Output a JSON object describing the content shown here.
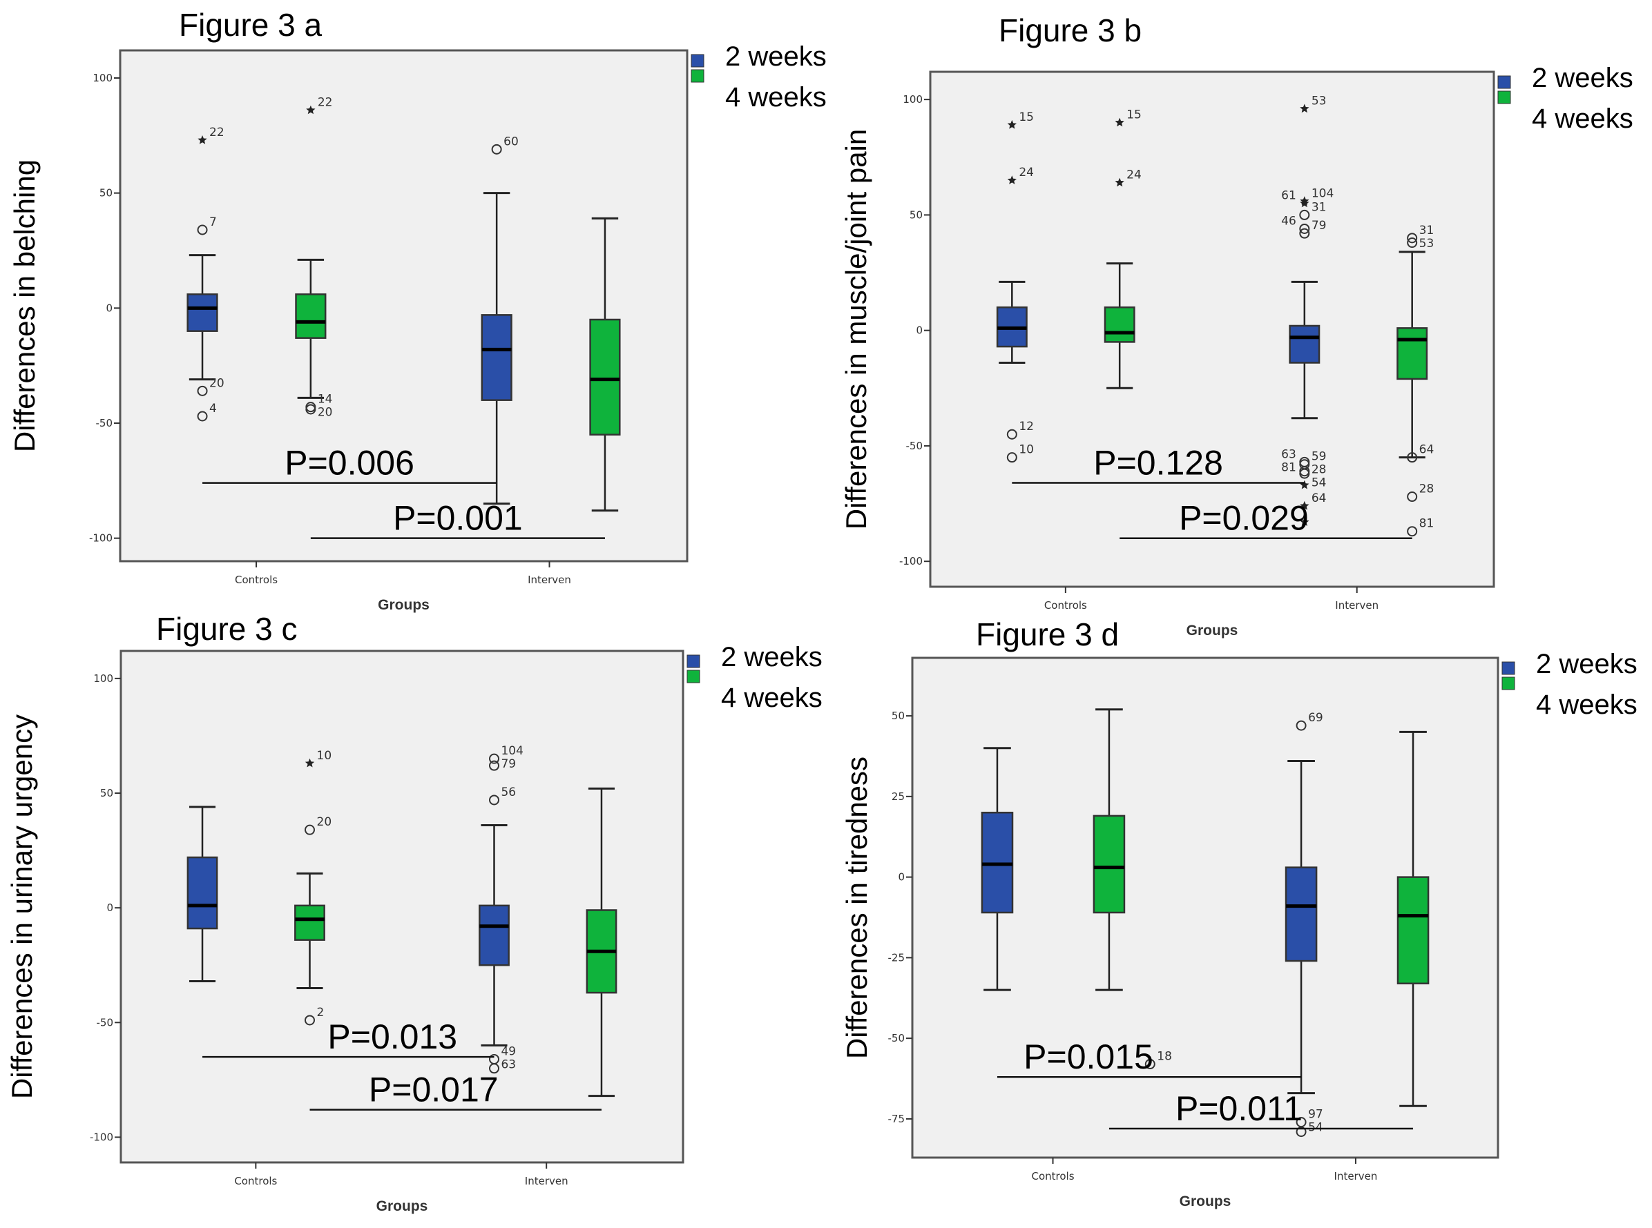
{
  "legend": {
    "entries": [
      {
        "label": "2 weeks",
        "color": "#2a4fa8"
      },
      {
        "label": "4 weeks",
        "color": "#0fb33c"
      }
    ]
  },
  "colors": {
    "plot_background": "#f0f0f0",
    "frame": "#555555",
    "median": "#000000"
  },
  "chart_data": [
    {
      "type": "box",
      "title": "Figure 3 a",
      "xlabel": "Groups",
      "ylabel": "Differences  in belching",
      "categories": [
        "Controls",
        "Interven"
      ],
      "ylim": [
        -110,
        112
      ],
      "yticks": [
        -100,
        -50,
        0,
        50,
        100
      ],
      "grid": false,
      "legend_placement": "top-right outside",
      "boxes": [
        {
          "category": "Controls",
          "series": "2 weeks",
          "min": -31,
          "q1": -10,
          "median": 0,
          "q3": 6,
          "max": 23,
          "outliers": [
            {
              "v": 73,
              "m": "star",
              "id": "22"
            },
            {
              "v": 34,
              "m": "circle",
              "id": "7"
            },
            {
              "v": -36,
              "m": "circle",
              "id": "20"
            },
            {
              "v": -47,
              "m": "circle",
              "id": "4"
            }
          ]
        },
        {
          "category": "Controls",
          "series": "4 weeks",
          "min": -39,
          "q1": -13,
          "median": -6,
          "q3": 6,
          "max": 21,
          "outliers": [
            {
              "v": 86,
              "m": "star",
              "id": "22"
            },
            {
              "v": -43,
              "m": "circle",
              "id": "14"
            },
            {
              "v": -44,
              "m": "circle",
              "id": "20"
            }
          ]
        },
        {
          "category": "Interven",
          "series": "2 weeks",
          "min": -85,
          "q1": -40,
          "median": -18,
          "q3": -3,
          "max": 50,
          "outliers": [
            {
              "v": 69,
              "m": "circle",
              "id": "60"
            }
          ]
        },
        {
          "category": "Interven",
          "series": "4 weeks",
          "min": -88,
          "q1": -55,
          "median": -31,
          "q3": -5,
          "max": 39,
          "outliers": []
        }
      ],
      "pvalues": [
        {
          "text": "P=0.006",
          "from": 0,
          "to": 2,
          "y": -76
        },
        {
          "text": "P=0.001",
          "from": 1,
          "to": 3,
          "y": -100
        }
      ]
    },
    {
      "type": "box",
      "title": "Figure 3 b",
      "xlabel": "Groups",
      "ylabel": "Differences  in muscle/joint pain",
      "categories": [
        "Controls",
        "Interven"
      ],
      "ylim": [
        -111,
        112
      ],
      "yticks": [
        -100,
        -50,
        0,
        50,
        100
      ],
      "grid": false,
      "legend_placement": "top-right outside",
      "boxes": [
        {
          "category": "Controls",
          "series": "2 weeks",
          "min": -14,
          "q1": -7,
          "median": 1,
          "q3": 10,
          "max": 21,
          "outliers": [
            {
              "v": 89,
              "m": "star",
              "id": "15"
            },
            {
              "v": 65,
              "m": "star",
              "id": "24"
            },
            {
              "v": -45,
              "m": "circle",
              "id": "12"
            },
            {
              "v": -55,
              "m": "circle",
              "id": "10"
            }
          ]
        },
        {
          "category": "Controls",
          "series": "4 weeks",
          "min": -25,
          "q1": -5,
          "median": -1,
          "q3": 10,
          "max": 29,
          "outliers": [
            {
              "v": 90,
              "m": "star",
              "id": "15"
            },
            {
              "v": 64,
              "m": "star",
              "id": "24"
            }
          ]
        },
        {
          "category": "Interven",
          "series": "2 weeks",
          "min": -38,
          "q1": -14,
          "median": -3,
          "q3": 2,
          "max": 21,
          "outliers": [
            {
              "v": 96,
              "m": "star",
              "id": "53"
            },
            {
              "v": 56,
              "m": "star",
              "id": "104"
            },
            {
              "v": 55,
              "m": "star",
              "id": "61",
              "left": true
            },
            {
              "v": 50,
              "m": "circle",
              "id": "31"
            },
            {
              "v": 44,
              "m": "circle",
              "id": "46",
              "left": true
            },
            {
              "v": 42,
              "m": "circle",
              "id": "79"
            },
            {
              "v": -57,
              "m": "circle",
              "id": "63",
              "left": true
            },
            {
              "v": -58,
              "m": "circle",
              "id": "59"
            },
            {
              "v": -61,
              "m": "circle",
              "id": "28"
            },
            {
              "v": -62,
              "m": "circle",
              "id": "81",
              "left": true
            },
            {
              "v": -67,
              "m": "star",
              "id": "54"
            },
            {
              "v": -76,
              "m": "star",
              "id": "64"
            },
            {
              "v": -83,
              "m": "star",
              "id": ""
            }
          ]
        },
        {
          "category": "Interven",
          "series": "4 weeks",
          "min": -55,
          "q1": -21,
          "median": -4,
          "q3": 1,
          "max": 34,
          "outliers": [
            {
              "v": 40,
              "m": "circle",
              "id": "31"
            },
            {
              "v": 38,
              "m": "circle",
              "id": "53"
            },
            {
              "v": -55,
              "m": "circle",
              "id": "64"
            },
            {
              "v": -72,
              "m": "circle",
              "id": "28"
            },
            {
              "v": -87,
              "m": "circle",
              "id": "81"
            }
          ]
        }
      ],
      "pvalues": [
        {
          "text": "P=0.128",
          "from": 0,
          "to": 2,
          "y": -66
        },
        {
          "text": "P=0.029",
          "from": 1,
          "to": 3,
          "y": -90
        }
      ]
    },
    {
      "type": "box",
      "title": "Figure 3 c",
      "xlabel": "Groups",
      "ylabel": "Differences  in urinary urgency",
      "categories": [
        "Controls",
        "Interven"
      ],
      "ylim": [
        -111,
        112
      ],
      "yticks": [
        -100,
        -50,
        0,
        50,
        100
      ],
      "grid": false,
      "legend_placement": "top-right outside",
      "boxes": [
        {
          "category": "Controls",
          "series": "2 weeks",
          "min": -32,
          "q1": -9,
          "median": 1,
          "q3": 22,
          "max": 44,
          "outliers": []
        },
        {
          "category": "Controls",
          "series": "4 weeks",
          "min": -35,
          "q1": -14,
          "median": -5,
          "q3": 1,
          "max": 15,
          "outliers": [
            {
              "v": 63,
              "m": "star",
              "id": "10"
            },
            {
              "v": 34,
              "m": "circle",
              "id": "20"
            },
            {
              "v": -49,
              "m": "circle",
              "id": "2"
            }
          ]
        },
        {
          "category": "Interven",
          "series": "2 weeks",
          "min": -60,
          "q1": -25,
          "median": -8,
          "q3": 1,
          "max": 36,
          "outliers": [
            {
              "v": 65,
              "m": "circle",
              "id": "104"
            },
            {
              "v": 62,
              "m": "circle",
              "id": "79"
            },
            {
              "v": 47,
              "m": "circle",
              "id": "56"
            },
            {
              "v": -66,
              "m": "circle",
              "id": "49"
            },
            {
              "v": -70,
              "m": "circle",
              "id": "63"
            }
          ]
        },
        {
          "category": "Interven",
          "series": "4 weeks",
          "min": -82,
          "q1": -37,
          "median": -19,
          "q3": -1,
          "max": 52,
          "outliers": []
        }
      ],
      "pvalues": [
        {
          "text": "P=0.013",
          "from": 0,
          "to": 2,
          "y": -65
        },
        {
          "text": "P=0.017",
          "from": 1,
          "to": 3,
          "y": -88
        }
      ]
    },
    {
      "type": "box",
      "title": "Figure 3 d",
      "xlabel": "Groups",
      "ylabel": "Differences in tiredness",
      "categories": [
        "Controls",
        "Interven"
      ],
      "ylim": [
        -87,
        68
      ],
      "yticks": [
        -75,
        -50,
        -25,
        0,
        25,
        50
      ],
      "grid": false,
      "legend_placement": "top-right outside",
      "boxes": [
        {
          "category": "Controls",
          "series": "2 weeks",
          "min": -35,
          "q1": -11,
          "median": 4,
          "q3": 20,
          "max": 40,
          "outliers": []
        },
        {
          "category": "Controls",
          "series": "4 weeks",
          "min": -35,
          "q1": -11,
          "median": 3,
          "q3": 19,
          "max": 52,
          "outliers": [
            {
              "v": -58,
              "m": "circle",
              "id": "18",
              "dx": 0.07
            }
          ]
        },
        {
          "category": "Interven",
          "series": "2 weeks",
          "min": -67,
          "q1": -26,
          "median": -9,
          "q3": 3,
          "max": 36,
          "outliers": [
            {
              "v": 47,
              "m": "circle",
              "id": "69"
            },
            {
              "v": -76,
              "m": "circle",
              "id": "97"
            },
            {
              "v": -79,
              "m": "circle",
              "id": "54"
            }
          ]
        },
        {
          "category": "Interven",
          "series": "4 weeks",
          "min": -71,
          "q1": -33,
          "median": -12,
          "q3": 0,
          "max": 45,
          "outliers": []
        }
      ],
      "pvalues": [
        {
          "text": "P=0.015",
          "from": 0,
          "to": 2,
          "y": -62
        },
        {
          "text": "P=0.011",
          "from": 1,
          "to": 3,
          "y": -78
        }
      ]
    }
  ]
}
